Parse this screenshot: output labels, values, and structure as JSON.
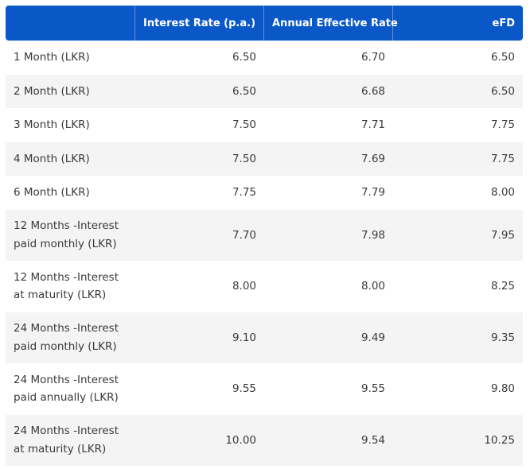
{
  "table": {
    "headers": [
      "",
      "Interest Rate (p.a.)",
      "Annual Effective Rate",
      "eFD"
    ],
    "rows": [
      {
        "term": "1 Month (LKR)",
        "interest_rate": "6.50",
        "annual_effective_rate": "6.70",
        "efd": "6.50"
      },
      {
        "term": "2 Month (LKR)",
        "interest_rate": "6.50",
        "annual_effective_rate": "6.68",
        "efd": "6.50"
      },
      {
        "term": "3 Month (LKR)",
        "interest_rate": "7.50",
        "annual_effective_rate": "7.71",
        "efd": "7.75"
      },
      {
        "term": "4 Month (LKR)",
        "interest_rate": "7.50",
        "annual_effective_rate": "7.69",
        "efd": "7.75"
      },
      {
        "term": "6 Month (LKR)",
        "interest_rate": "7.75",
        "annual_effective_rate": "7.79",
        "efd": "8.00"
      },
      {
        "term": "12 Months -Interest paid monthly (LKR)",
        "interest_rate": "7.70",
        "annual_effective_rate": "7.98",
        "efd": "7.95"
      },
      {
        "term": "12 Months -Interest at maturity (LKR)",
        "interest_rate": "8.00",
        "annual_effective_rate": "8.00",
        "efd": "8.25"
      },
      {
        "term": "24 Months -Interest paid monthly (LKR)",
        "interest_rate": "9.10",
        "annual_effective_rate": "9.49",
        "efd": "9.35"
      },
      {
        "term": "24 Months -Interest paid annually (LKR)",
        "interest_rate": "9.55",
        "annual_effective_rate": "9.55",
        "efd": "9.80"
      },
      {
        "term": "24 Months -Interest at maturity (LKR)",
        "interest_rate": "10.00",
        "annual_effective_rate": "9.54",
        "efd": "10.25"
      }
    ]
  },
  "colors": {
    "header_bg": "#0a58c8",
    "header_text": "#ffffff",
    "row_shade": "#f4f4f4",
    "text": "#3a3a3a"
  }
}
